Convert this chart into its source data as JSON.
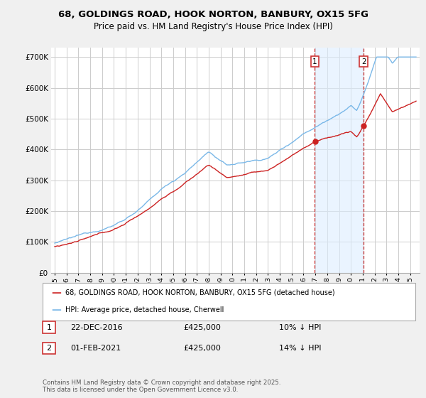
{
  "title_line1": "68, GOLDINGS ROAD, HOOK NORTON, BANBURY, OX15 5FG",
  "title_line2": "Price paid vs. HM Land Registry's House Price Index (HPI)",
  "ylim": [
    0,
    730000
  ],
  "yticks": [
    0,
    100000,
    200000,
    300000,
    400000,
    500000,
    600000,
    700000
  ],
  "ytick_labels": [
    "£0",
    "£100K",
    "£200K",
    "£300K",
    "£400K",
    "£500K",
    "£600K",
    "£700K"
  ],
  "hpi_color": "#7ab8e8",
  "price_color": "#cc2222",
  "vline_color": "#cc3333",
  "shade_color": "#ddeeff",
  "legend_label_price": "68, GOLDINGS ROAD, HOOK NORTON, BANBURY, OX15 5FG (detached house)",
  "legend_label_hpi": "HPI: Average price, detached house, Cherwell",
  "annotation1_label": "22-DEC-2016",
  "annotation1_price": "£425,000",
  "annotation1_hpi": "10% ↓ HPI",
  "annotation2_label": "01-FEB-2021",
  "annotation2_price": "£425,000",
  "annotation2_hpi": "14% ↓ HPI",
  "footer": "Contains HM Land Registry data © Crown copyright and database right 2025.\nThis data is licensed under the Open Government Licence v3.0.",
  "bg_color": "#f0f0f0",
  "plot_bg_color": "#ffffff",
  "grid_color": "#cccccc",
  "date1": 2016.96,
  "date2": 2021.08,
  "year_start": 1995,
  "year_end": 2025
}
